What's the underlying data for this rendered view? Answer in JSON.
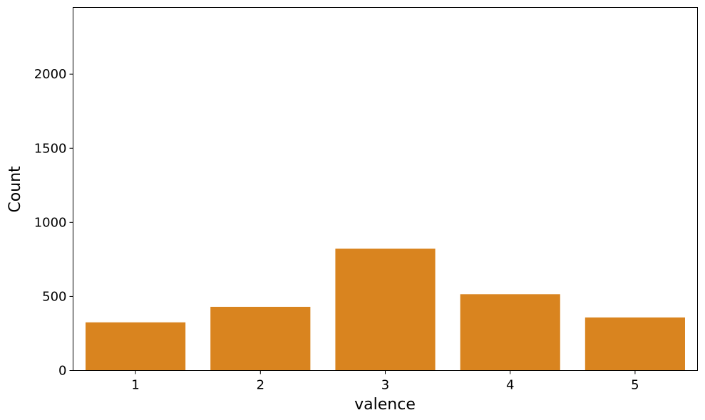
{
  "chart_data": {
    "type": "bar",
    "categories": [
      "1",
      "2",
      "3",
      "4",
      "5"
    ],
    "values": [
      325,
      430,
      822,
      515,
      358
    ],
    "title": "",
    "xlabel": "valence",
    "ylabel": "Count",
    "ylim": [
      0,
      2450
    ],
    "yticks": [
      0,
      500,
      1000,
      1500,
      2000
    ],
    "ytick_labels": [
      "0",
      "500",
      "1000",
      "1500",
      "2000"
    ],
    "bar_color": "#d9841f",
    "grid": false,
    "legend": "none"
  }
}
